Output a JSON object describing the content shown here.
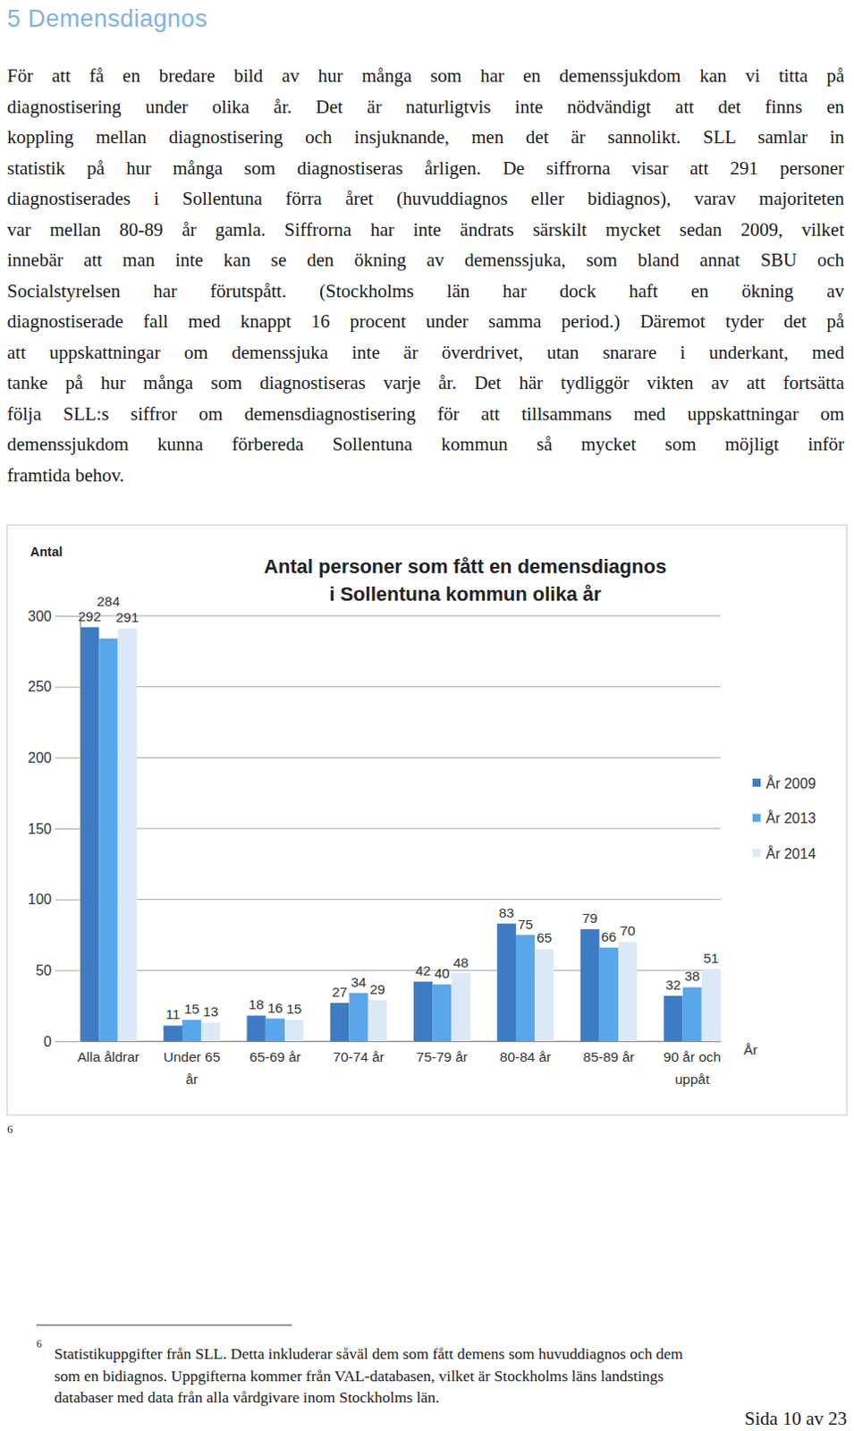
{
  "heading": "5 Demensdiagnos",
  "paragraph": [
    "För att få en bredare bild av hur många som har en demenssjukdom kan vi titta på",
    "diagnostisering under olika år. Det är naturligtvis inte nödvändigt att det finns en",
    "koppling mellan diagnostisering och insjuknande, men det är sannolikt. SLL samlar in",
    "statistik på hur många som diagnostiseras årligen. De siffrorna visar att 291 personer",
    "diagnostiserades i Sollentuna förra året (huvuddiagnos eller bidiagnos), varav majoriteten",
    "var mellan 80-89 år gamla. Siffrorna har inte ändrats särskilt mycket sedan 2009, vilket",
    "innebär att man inte kan se den ökning av demenssjuka, som bland annat SBU och",
    "Socialstyrelsen har förutspått. (Stockholms län har dock haft en ökning av",
    "diagnostiserade fall med knappt 16 procent under samma period.) Däremot tyder det på",
    "att uppskattningar om demenssjuka inte är överdrivet, utan snarare i underkant, med",
    "tanke på hur många som diagnostiseras varje år. Det här tydliggör vikten av att fortsätta",
    "följa SLL:s siffror om demensdiagnostisering för att tillsammans med uppskattningar om",
    "demenssjukdom kunna förbereda Sollentuna kommun så mycket som möjligt inför",
    "framtida behov."
  ],
  "chart_data": {
    "type": "bar",
    "title": "Antal personer som fått en demensdiagnos i Sollentuna kommun olika år",
    "y_label": "Antal",
    "x_label": "År",
    "categories": [
      "Alla åldrar",
      "Under 65 år",
      "65-69 år",
      "70-74 år",
      "75-79 år",
      "80-84 år",
      "85-89 år",
      "90 år och uppåt"
    ],
    "series": [
      {
        "name": "År 2009",
        "color": "#3d7cc4",
        "values": [
          292,
          11,
          18,
          27,
          42,
          83,
          79,
          32
        ]
      },
      {
        "name": "År 2013",
        "color": "#5aa6ea",
        "values": [
          284,
          15,
          16,
          34,
          40,
          75,
          66,
          38
        ]
      },
      {
        "name": "År 2014",
        "color": "#dce9f8",
        "values": [
          291,
          13,
          15,
          29,
          48,
          65,
          70,
          51
        ]
      }
    ],
    "ylim": [
      0,
      300
    ],
    "yticks": [
      0,
      50,
      100,
      150,
      200,
      250,
      300
    ],
    "grid": true,
    "legend": "right",
    "data_labels": true
  },
  "chart_footnote_ref": "6",
  "footnote": {
    "marker": "6",
    "lines": [
      "Statistikuppgifter från SLL. Detta inkluderar såväl dem som fått demens som huvuddiagnos och dem",
      "som en bidiagnos. Uppgifterna kommer från VAL-databasen, vilket är Stockholms läns landstings",
      "databaser med data från alla vårdgivare inom Stockholms län."
    ]
  },
  "page": "Sida 10 av 23"
}
